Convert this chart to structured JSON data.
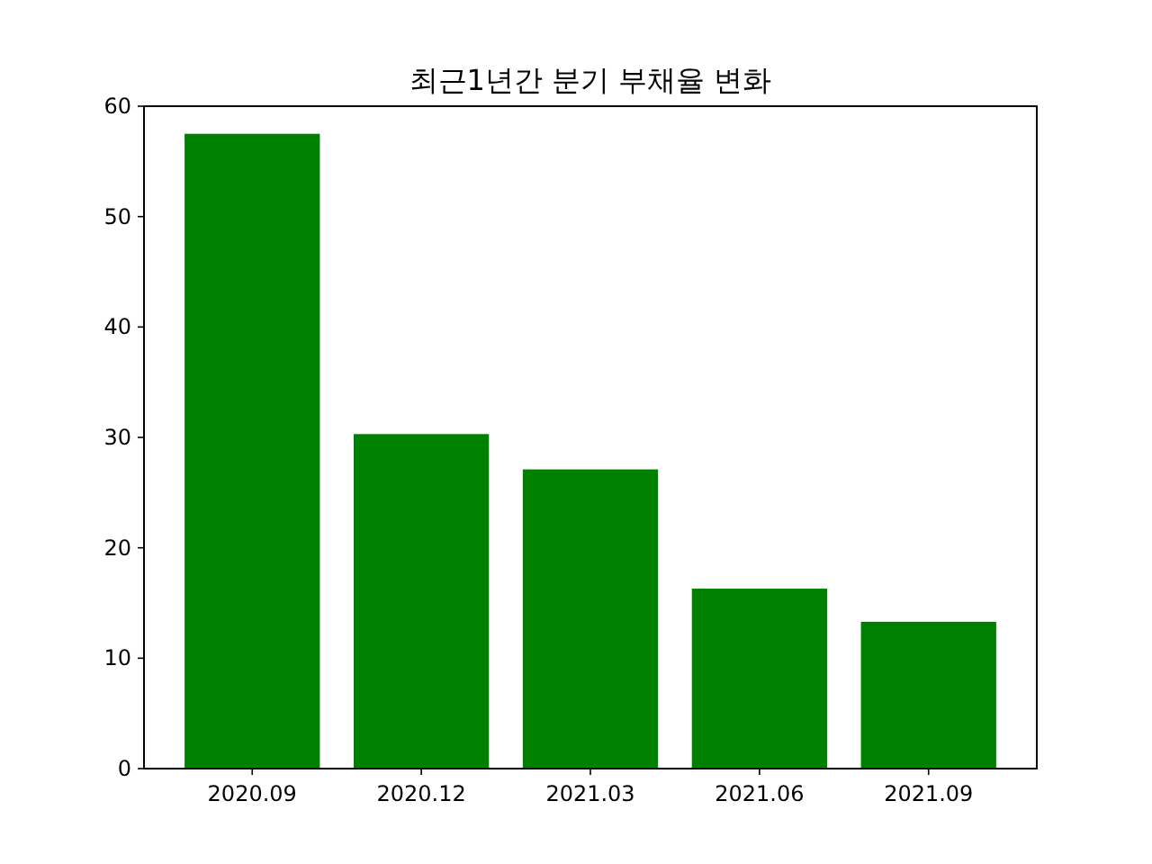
{
  "chart_data": {
    "type": "bar",
    "title": "최근1년간 분기 부채율 변화",
    "categories": [
      "2020.09",
      "2020.12",
      "2021.03",
      "2021.06",
      "2021.09"
    ],
    "values": [
      57.5,
      30.3,
      27.1,
      16.3,
      13.3
    ],
    "color": "#008000",
    "ylim": [
      0,
      60
    ],
    "yticks": [
      0,
      10,
      20,
      30,
      40,
      50,
      60
    ]
  }
}
